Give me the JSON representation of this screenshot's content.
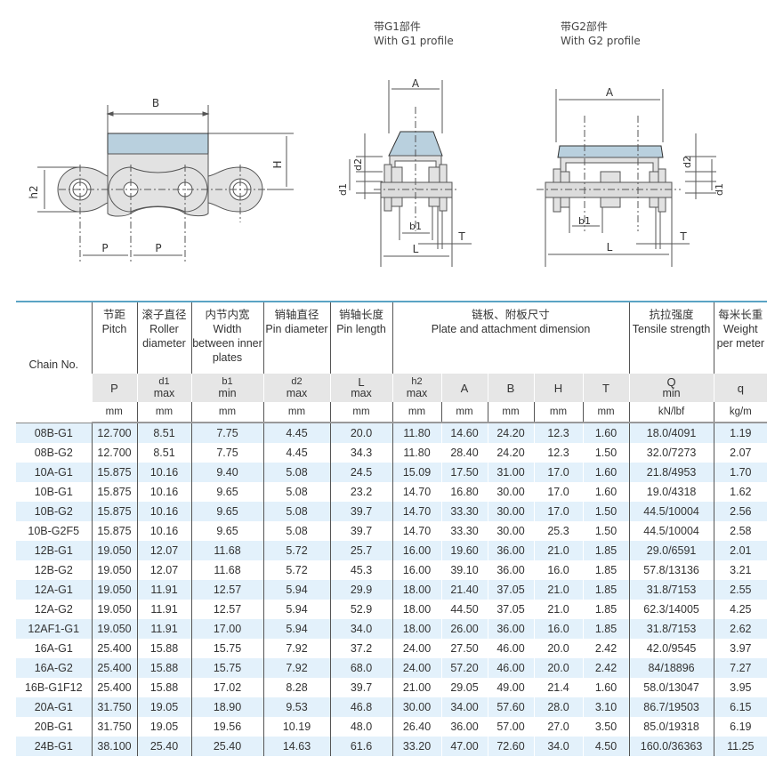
{
  "figures": {
    "side_view": {
      "labels": {
        "B": "B",
        "H": "H",
        "h2": "h2",
        "P1": "P",
        "P2": "P"
      }
    },
    "g1_profile": {
      "title_cn": "带G1部件",
      "title_en": "With G1 profile",
      "labels": {
        "A": "A",
        "d1": "d1",
        "d2": "d2",
        "b1": "b1",
        "L": "L",
        "T": "T"
      }
    },
    "g2_profile": {
      "title_cn": "带G2部件",
      "title_en": "With G2 profile",
      "labels": {
        "A": "A",
        "d1": "d1",
        "d2": "d2",
        "b1": "b1",
        "L": "L",
        "T": "T"
      }
    },
    "fill_color": "#b9d0de"
  },
  "table": {
    "chain_no": "Chain No.",
    "groups": [
      {
        "cn": "节距",
        "en": "Pitch"
      },
      {
        "cn": "滚子直径",
        "en": "Roller diameter"
      },
      {
        "cn": "内节内宽",
        "en": "Width between inner plates"
      },
      {
        "cn": "销轴直径",
        "en": "Pin diameter"
      },
      {
        "cn": "销轴长度",
        "en": "Pin length"
      },
      {
        "cn": "链板、附板尺寸",
        "en": "Plate and attachment dimension"
      },
      {
        "cn": "抗拉强度",
        "en": "Tensile strength"
      },
      {
        "cn": "每米长重",
        "en": "Weight per meter"
      }
    ],
    "symbols": [
      {
        "s": "P",
        "q": ""
      },
      {
        "s": "d1",
        "q": "max"
      },
      {
        "s": "b1",
        "q": "min"
      },
      {
        "s": "d2",
        "q": "max"
      },
      {
        "s": "L",
        "q": "max"
      },
      {
        "s": "h2",
        "q": "max"
      },
      {
        "s": "A",
        "q": ""
      },
      {
        "s": "B",
        "q": ""
      },
      {
        "s": "H",
        "q": ""
      },
      {
        "s": "T",
        "q": ""
      },
      {
        "s": "Q",
        "q": "min"
      },
      {
        "s": "q",
        "q": ""
      }
    ],
    "units": [
      "mm",
      "mm",
      "mm",
      "mm",
      "mm",
      "mm",
      "mm",
      "mm",
      "mm",
      "mm",
      "kN/lbf",
      "kg/m"
    ],
    "rows": [
      [
        "08B-G1",
        "12.700",
        "8.51",
        "7.75",
        "4.45",
        "20.0",
        "11.80",
        "14.60",
        "24.20",
        "12.3",
        "1.60",
        "18.0/4091",
        "1.19"
      ],
      [
        "08B-G2",
        "12.700",
        "8.51",
        "7.75",
        "4.45",
        "34.3",
        "11.80",
        "28.40",
        "24.20",
        "12.3",
        "1.50",
        "32.0/7273",
        "2.07"
      ],
      [
        "10A-G1",
        "15.875",
        "10.16",
        "9.40",
        "5.08",
        "24.5",
        "15.09",
        "17.50",
        "31.00",
        "17.0",
        "1.60",
        "21.8/4953",
        "1.70"
      ],
      [
        "10B-G1",
        "15.875",
        "10.16",
        "9.65",
        "5.08",
        "23.2",
        "14.70",
        "16.80",
        "30.00",
        "17.0",
        "1.60",
        "19.0/4318",
        "1.62"
      ],
      [
        "10B-G2",
        "15.875",
        "10.16",
        "9.65",
        "5.08",
        "39.7",
        "14.70",
        "33.30",
        "30.00",
        "17.0",
        "1.50",
        "44.5/10004",
        "2.56"
      ],
      [
        "10B-G2F5",
        "15.875",
        "10.16",
        "9.65",
        "5.08",
        "39.7",
        "14.70",
        "33.30",
        "30.00",
        "25.3",
        "1.50",
        "44.5/10004",
        "2.58"
      ],
      [
        "12B-G1",
        "19.050",
        "12.07",
        "11.68",
        "5.72",
        "25.7",
        "16.00",
        "19.60",
        "36.00",
        "21.0",
        "1.85",
        "29.0/6591",
        "2.01"
      ],
      [
        "12B-G2",
        "19.050",
        "12.07",
        "11.68",
        "5.72",
        "45.3",
        "16.00",
        "39.10",
        "36.00",
        "16.0",
        "1.85",
        "57.8/13136",
        "3.21"
      ],
      [
        "12A-G1",
        "19.050",
        "11.91",
        "12.57",
        "5.94",
        "29.9",
        "18.00",
        "21.40",
        "37.05",
        "21.0",
        "1.85",
        "31.8/7153",
        "2.55"
      ],
      [
        "12A-G2",
        "19.050",
        "11.91",
        "12.57",
        "5.94",
        "52.9",
        "18.00",
        "44.50",
        "37.05",
        "21.0",
        "1.85",
        "62.3/14005",
        "4.25"
      ],
      [
        "12AF1-G1",
        "19.050",
        "11.91",
        "17.00",
        "5.94",
        "34.0",
        "18.00",
        "26.00",
        "36.00",
        "16.0",
        "1.85",
        "31.8/7153",
        "2.62"
      ],
      [
        "16A-G1",
        "25.400",
        "15.88",
        "15.75",
        "7.92",
        "37.2",
        "24.00",
        "27.50",
        "46.00",
        "20.0",
        "2.42",
        "42.0/9545",
        "3.97"
      ],
      [
        "16A-G2",
        "25.400",
        "15.88",
        "15.75",
        "7.92",
        "68.0",
        "24.00",
        "57.20",
        "46.00",
        "20.0",
        "2.42",
        "84/18896",
        "7.27"
      ],
      [
        "16B-G1F12",
        "25.400",
        "15.88",
        "17.02",
        "8.28",
        "39.7",
        "21.00",
        "29.05",
        "49.00",
        "21.4",
        "1.60",
        "58.0/13047",
        "3.95"
      ],
      [
        "20A-G1",
        "31.750",
        "19.05",
        "18.90",
        "9.53",
        "46.8",
        "30.00",
        "34.00",
        "57.60",
        "28.0",
        "3.10",
        "86.7/19503",
        "6.15"
      ],
      [
        "20B-G1",
        "31.750",
        "19.05",
        "19.56",
        "10.19",
        "48.0",
        "26.40",
        "36.00",
        "57.00",
        "27.0",
        "3.50",
        "85.0/19318",
        "6.19"
      ],
      [
        "24B-G1",
        "38.100",
        "25.40",
        "25.40",
        "14.63",
        "61.6",
        "33.20",
        "47.00",
        "72.60",
        "34.0",
        "4.50",
        "160.0/36363",
        "11.25"
      ]
    ],
    "colors": {
      "row_alt": "#e3f1fb",
      "header_rule": "#5aa3c4",
      "symbol_row": "#e6e6e6"
    }
  }
}
